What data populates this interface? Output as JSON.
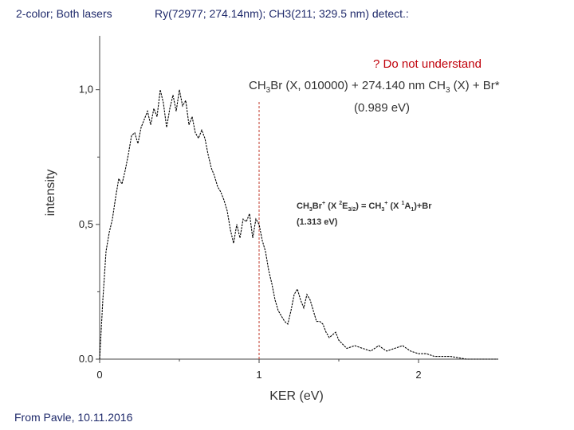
{
  "slide": {
    "header_left": "2-color; Both lasers",
    "header_right": "Ry(72977; 274.14nm); CH3(211; 329.5 nm) detect.:",
    "red_note": "? Do not understand",
    "footer": "From Pavle, 10.11.2016"
  },
  "colors": {
    "header_text": "#1f2a6b",
    "red_note": "#c0000a",
    "marker_line": "#c0392b",
    "curve": "#000000"
  },
  "chart_data": {
    "type": "line",
    "xlabel": "KER (eV)",
    "ylabel": "intensity",
    "xlim": [
      0,
      2.5
    ],
    "ylim": [
      0,
      1.2
    ],
    "x_ticks": [
      {
        "value": 0,
        "label": "0"
      },
      {
        "value": 1,
        "label": "1"
      },
      {
        "value": 2,
        "label": "2"
      }
    ],
    "y_ticks": [
      {
        "value": 0,
        "label": "0.0"
      },
      {
        "value": 0.5,
        "label": "0,5"
      },
      {
        "value": 1.0,
        "label": "1,0"
      }
    ],
    "grid": false,
    "legend": "none",
    "series": [
      {
        "x": [
          0.0,
          0.02,
          0.04,
          0.06,
          0.08,
          0.1,
          0.12,
          0.14,
          0.16,
          0.18,
          0.2,
          0.22,
          0.24,
          0.26,
          0.28,
          0.3,
          0.32,
          0.34,
          0.36,
          0.38,
          0.4,
          0.42,
          0.44,
          0.46,
          0.48,
          0.5,
          0.52,
          0.54,
          0.56,
          0.58,
          0.6,
          0.62,
          0.64,
          0.66,
          0.68,
          0.7,
          0.72,
          0.74,
          0.76,
          0.78,
          0.8,
          0.82,
          0.84,
          0.86,
          0.88,
          0.9,
          0.92,
          0.94,
          0.96,
          0.98,
          1.0,
          1.02,
          1.04,
          1.06,
          1.08,
          1.1,
          1.12,
          1.14,
          1.16,
          1.18,
          1.2,
          1.22,
          1.24,
          1.26,
          1.28,
          1.3,
          1.32,
          1.34,
          1.36,
          1.38,
          1.4,
          1.42,
          1.44,
          1.46,
          1.48,
          1.5,
          1.55,
          1.6,
          1.65,
          1.7,
          1.75,
          1.8,
          1.85,
          1.9,
          1.95,
          2.0,
          2.05,
          2.1,
          2.15,
          2.2,
          2.3,
          2.4,
          2.5
        ],
        "y": [
          0.0,
          0.22,
          0.4,
          0.47,
          0.52,
          0.6,
          0.67,
          0.65,
          0.7,
          0.76,
          0.83,
          0.84,
          0.8,
          0.86,
          0.89,
          0.92,
          0.87,
          0.93,
          0.9,
          1.0,
          0.95,
          0.86,
          0.93,
          0.98,
          0.92,
          1.0,
          0.94,
          0.96,
          0.87,
          0.9,
          0.84,
          0.82,
          0.85,
          0.82,
          0.76,
          0.71,
          0.68,
          0.64,
          0.62,
          0.59,
          0.55,
          0.48,
          0.43,
          0.5,
          0.45,
          0.52,
          0.51,
          0.54,
          0.45,
          0.52,
          0.5,
          0.44,
          0.4,
          0.33,
          0.28,
          0.22,
          0.18,
          0.16,
          0.14,
          0.13,
          0.18,
          0.24,
          0.26,
          0.22,
          0.19,
          0.24,
          0.22,
          0.18,
          0.14,
          0.14,
          0.13,
          0.1,
          0.08,
          0.09,
          0.1,
          0.07,
          0.04,
          0.05,
          0.04,
          0.03,
          0.05,
          0.03,
          0.04,
          0.05,
          0.03,
          0.02,
          0.02,
          0.01,
          0.01,
          0.01,
          0.0,
          0.0,
          0.0
        ]
      }
    ],
    "marker": {
      "x": 1.0
    },
    "annotations": {
      "upper_line1": "CH3Br (X, 010000) + 274.140 nm CH3 (X) + Br*",
      "upper_line2": "(0.989 eV)",
      "lower_line1": "CH3Br+ (X 2E3/2) = CH3+ (X 1A1)+Br",
      "lower_line2": "(1.313 eV)"
    }
  }
}
